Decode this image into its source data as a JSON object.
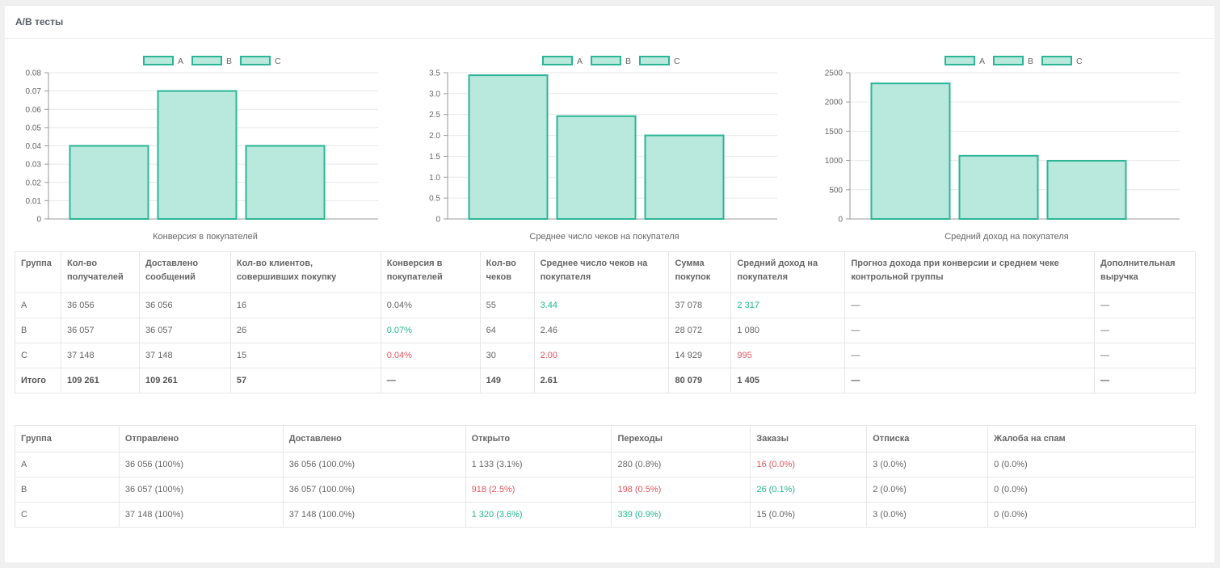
{
  "panel": {
    "title": "A/B тесты"
  },
  "colors": {
    "bar_fill": "#b9e8dc",
    "bar_stroke": "#2bb696",
    "grid": "#e8e8e8",
    "axis": "#999999",
    "good": "#21b88e",
    "bad": "#e2575f"
  },
  "chart_data": [
    {
      "type": "bar",
      "categories": [
        "A",
        "B",
        "C"
      ],
      "values": [
        0.04,
        0.07,
        0.04
      ],
      "legend": [
        "A",
        "B",
        "C"
      ],
      "xlabel": "Конверсия в покупателей",
      "yticks": [
        "0",
        "0.01",
        "0.02",
        "0.03",
        "0.04",
        "0.05",
        "0.06",
        "0.07",
        "0.08"
      ],
      "ylim": [
        0,
        0.08
      ],
      "grid": true,
      "legend_position": "top"
    },
    {
      "type": "bar",
      "categories": [
        "A",
        "B",
        "C"
      ],
      "values": [
        3.44,
        2.46,
        2.0
      ],
      "legend": [
        "A",
        "B",
        "C"
      ],
      "xlabel": "Среднее число чеков на покупателя",
      "yticks": [
        "0",
        "0.5",
        "1.0",
        "1.5",
        "2.0",
        "2.5",
        "3.0",
        "3.5"
      ],
      "ylim": [
        0,
        3.5
      ],
      "grid": true,
      "legend_position": "top"
    },
    {
      "type": "bar",
      "categories": [
        "A",
        "B",
        "C"
      ],
      "values": [
        2317,
        1080,
        995
      ],
      "legend": [
        "A",
        "B",
        "C"
      ],
      "xlabel": "Средний доход на покупателя",
      "yticks": [
        "0",
        "500",
        "1000",
        "1500",
        "2000",
        "2500"
      ],
      "ylim": [
        0,
        2500
      ],
      "grid": true,
      "legend_position": "top"
    }
  ],
  "table1": {
    "headers": [
      "Группа",
      "Кол-во получателей",
      "Доставлено сообщений",
      "Кол-во клиентов, совершивших покупку",
      "Конверсия в покупателей",
      "Кол-во чеков",
      "Среднее число чеков на покупателя",
      "Сумма покупок",
      "Средний доход на покупателя",
      "Прогноз дохода при конверсии и среднем чеке контрольной группы",
      "Дополнительная выручка"
    ],
    "rows": [
      [
        "A",
        "36 056",
        "36 056",
        "16",
        "0.04%",
        "55",
        "3.44",
        "37 078",
        "2 317",
        "—",
        "—"
      ],
      [
        "B",
        "36 057",
        "36 057",
        "26",
        "0.07%",
        "64",
        "2.46",
        "28 072",
        "1 080",
        "—",
        "—"
      ],
      [
        "C",
        "37 148",
        "37 148",
        "15",
        "0.04%",
        "30",
        "2.00",
        "14 929",
        "995",
        "—",
        "—"
      ]
    ],
    "total": [
      "Итого",
      "109 261",
      "109 261",
      "57",
      "—",
      "149",
      "2.61",
      "80 079",
      "1 405",
      "—",
      "—"
    ],
    "highlights": {
      "r0c6": "good",
      "r0c8": "good",
      "r1c4": "good",
      "r2c4": "bad",
      "r2c6": "bad",
      "r2c8": "bad"
    }
  },
  "table2": {
    "headers": [
      "Группа",
      "Отправлено",
      "Доставлено",
      "Открыто",
      "Переходы",
      "Заказы",
      "Отписка",
      "Жалоба на спам"
    ],
    "rows": [
      [
        "A",
        "36 056 (100%)",
        "36 056 (100.0%)",
        "1 133 (3.1%)",
        "280 (0.8%)",
        "16 (0.0%)",
        "3 (0.0%)",
        "0 (0.0%)"
      ],
      [
        "B",
        "36 057 (100%)",
        "36 057 (100.0%)",
        "918 (2.5%)",
        "198 (0.5%)",
        "26 (0.1%)",
        "2 (0.0%)",
        "0 (0.0%)"
      ],
      [
        "C",
        "37 148 (100%)",
        "37 148 (100.0%)",
        "1 320 (3.6%)",
        "339 (0.9%)",
        "15 (0.0%)",
        "3 (0.0%)",
        "0 (0.0%)"
      ]
    ],
    "highlights": {
      "r0c5": "bad",
      "r1c3": "bad",
      "r1c4": "bad",
      "r1c5": "good",
      "r2c3": "good",
      "r2c4": "good"
    }
  }
}
